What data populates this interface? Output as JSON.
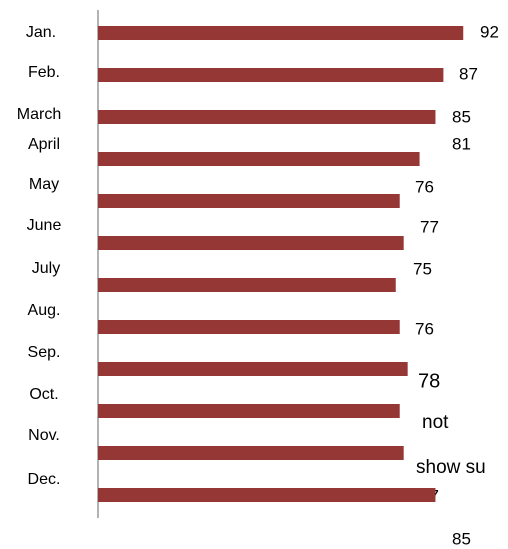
{
  "chart_data": {
    "type": "hbar",
    "categories": [
      "Jan.",
      "Feb.",
      "March",
      "April",
      "May",
      "June",
      "July",
      "Aug.",
      "Sep.",
      "Oct.",
      "Nov.",
      "Dec."
    ],
    "values": [
      92,
      87,
      85,
      81,
      76,
      77,
      75,
      76,
      78,
      76,
      77,
      85
    ],
    "color": "#953735",
    "xlim": [
      0,
      100
    ],
    "annotations": [
      "not",
      "show su"
    ]
  }
}
